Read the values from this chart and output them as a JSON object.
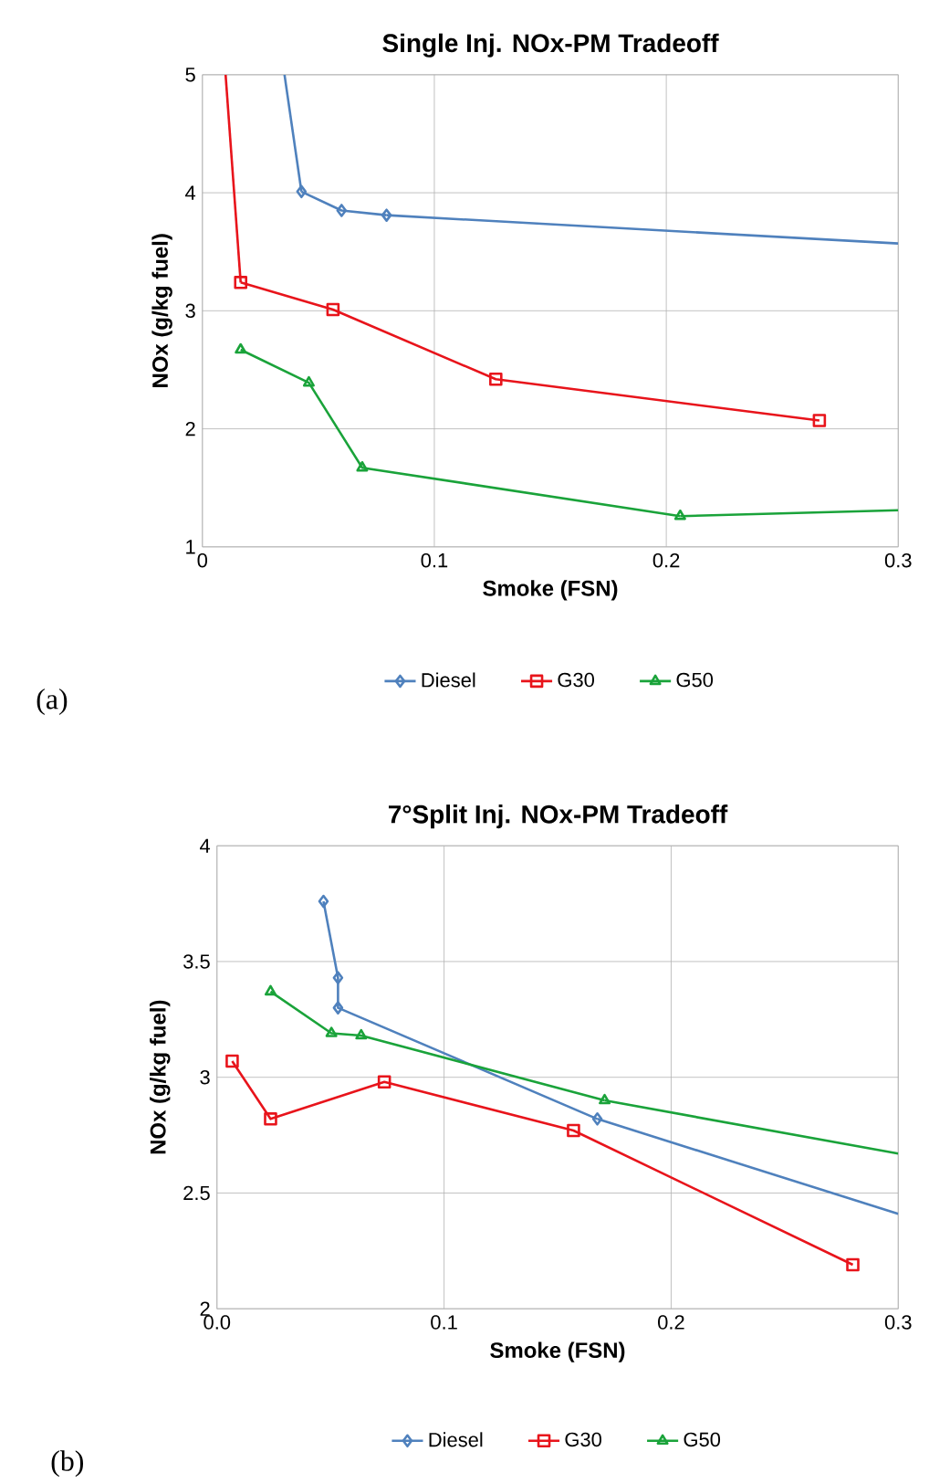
{
  "chart_data": [
    {
      "type": "line",
      "title": "Single Inj. NOx-PM Tradeoff",
      "xlabel": "Smoke (FSN)",
      "ylabel": "NOx (g/kg fuel)",
      "xlim": [
        0,
        0.3
      ],
      "ylim": [
        1,
        5
      ],
      "xticks": [
        0,
        0.1,
        0.2,
        0.3
      ],
      "yticks": [
        1,
        2,
        3,
        4,
        5
      ],
      "grid": true,
      "legend": "bottom",
      "annotations": [
        "(a)"
      ],
      "series": [
        {
          "name": "Diesel",
          "color": "#4f81bd",
          "marker": "diamond",
          "x": [
            0.0427,
            0.06,
            0.0794
          ],
          "values": [
            4.01,
            3.85,
            3.81
          ]
        },
        {
          "name": "G30",
          "color": "#e8141b",
          "marker": "square",
          "x": [
            0.0165,
            0.0563,
            0.1265,
            0.266
          ],
          "values": [
            3.24,
            3.01,
            2.42,
            2.07
          ]
        },
        {
          "name": "G50",
          "color": "#1aa33a",
          "marker": "triangle",
          "x": [
            0.0165,
            0.0459,
            0.0689,
            0.206
          ],
          "values": [
            2.67,
            2.39,
            1.67,
            1.26
          ]
        },
        {
          "color": "#4f81bd",
          "marker": "none",
          "x": [
            0.0354,
            0.0427
          ],
          "values": [
            5,
            4.01
          ]
        },
        {
          "color": "#4f81bd",
          "marker": "none",
          "x": [
            0.0794,
            0.3
          ],
          "values": [
            3.81,
            3.57
          ]
        },
        {
          "color": "#e8141b",
          "marker": "none",
          "x": [
            0.01,
            0.0165
          ],
          "values": [
            5,
            3.24
          ]
        },
        {
          "color": "#1aa33a",
          "marker": "none",
          "x": [
            0.206,
            0.3
          ],
          "values": [
            1.26,
            1.31
          ]
        }
      ]
    },
    {
      "type": "line",
      "title": "7°Split Inj. NOx-PM Tradeoff",
      "xlabel": "Smoke (FSN)",
      "ylabel": "NOx (g/kg fuel)",
      "xlim": [
        0,
        0.3
      ],
      "ylim": [
        2,
        4
      ],
      "xticks": [
        {
          "value": 0,
          "label": "0.0"
        },
        0.1,
        0.2,
        0.3
      ],
      "yticks": [
        2,
        2.5,
        3,
        3.5,
        4
      ],
      "grid": true,
      "legend": "bottom",
      "annotations": [
        "(b)"
      ],
      "series": [
        {
          "name": "Diesel",
          "color": "#4f81bd",
          "marker": "diamond",
          "x": [
            0.0469,
            0.0533,
            0.0533,
            0.1675
          ],
          "values": [
            3.76,
            3.43,
            3.3,
            2.82
          ]
        },
        {
          "name": "G30",
          "color": "#e8141b",
          "marker": "square",
          "x": [
            0.0067,
            0.0236,
            0.0737,
            0.157,
            0.28
          ],
          "values": [
            3.07,
            2.82,
            2.98,
            2.77,
            2.19
          ]
        },
        {
          "name": "G50",
          "color": "#1aa33a",
          "marker": "triangle",
          "x": [
            0.0236,
            0.0504,
            0.0635,
            0.1707
          ],
          "values": [
            3.37,
            3.19,
            3.18,
            2.9
          ]
        },
        {
          "color": "#4f81bd",
          "marker": "none",
          "x": [
            0.1675,
            0.3
          ],
          "values": [
            2.82,
            2.41
          ]
        },
        {
          "color": "#1aa33a",
          "marker": "none",
          "x": [
            0.1707,
            0.3
          ],
          "values": [
            2.9,
            2.67
          ]
        }
      ]
    }
  ]
}
